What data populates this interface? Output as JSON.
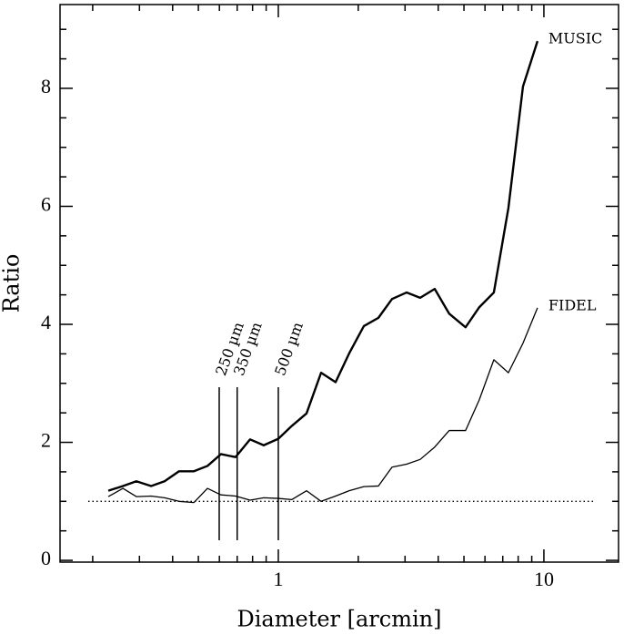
{
  "chart_data": {
    "type": "line",
    "x_label": "Diameter [arcmin]",
    "y_label": "Ratio",
    "x_log": true,
    "xlim": [
      0.1507,
      19.1
    ],
    "ylim": [
      -0.03,
      9.42
    ],
    "xticks": [
      1,
      10
    ],
    "xminorticks": [
      0.2,
      0.3,
      0.4,
      0.5,
      0.6,
      0.7,
      0.8,
      0.9,
      2,
      3,
      4,
      5,
      6,
      7,
      8,
      9
    ],
    "yticks": [
      0,
      2,
      4,
      6,
      8
    ],
    "yminorticks": [
      0.5,
      1,
      1.5,
      2.5,
      3,
      3.5,
      4.5,
      5,
      5.5,
      6.5,
      7,
      7.5,
      8.5,
      9
    ],
    "x": [
      0.229,
      0.26,
      0.292,
      0.332,
      0.373,
      0.423,
      0.481,
      0.541,
      0.608,
      0.69,
      0.783,
      0.881,
      1.0,
      1.125,
      1.277,
      1.449,
      1.643,
      1.849,
      2.099,
      2.381,
      2.68,
      3.04,
      3.42,
      3.88,
      4.4,
      5.07,
      5.71,
      6.48,
      7.35,
      8.34,
      9.46
    ],
    "series": [
      {
        "name": "MUSIC",
        "color": "#000",
        "width": 2.4,
        "values": [
          1.18,
          1.26,
          1.34,
          1.26,
          1.34,
          1.51,
          1.51,
          1.6,
          1.8,
          1.75,
          2.05,
          1.95,
          2.06,
          2.28,
          2.49,
          3.18,
          3.02,
          3.51,
          3.97,
          4.11,
          4.43,
          4.54,
          4.45,
          4.6,
          4.18,
          3.95,
          4.29,
          4.54,
          5.97,
          8.03,
          8.8
        ]
      },
      {
        "name": "FIDEL",
        "color": "#000",
        "width": 1.3,
        "values": [
          1.08,
          1.22,
          1.08,
          1.09,
          1.06,
          1.0,
          0.98,
          1.22,
          1.11,
          1.09,
          1.02,
          1.06,
          1.05,
          1.03,
          1.18,
          1.0,
          1.09,
          1.18,
          1.25,
          1.26,
          1.58,
          1.63,
          1.71,
          1.92,
          2.2,
          2.2,
          2.72,
          3.4,
          3.18,
          3.68,
          4.28
        ]
      }
    ],
    "reference_line": 1,
    "markers": [
      {
        "label": "250 µm",
        "x": 0.599
      },
      {
        "label": "350 µm",
        "x": 0.7
      },
      {
        "label": "500 µm",
        "x": 1.0
      }
    ]
  }
}
